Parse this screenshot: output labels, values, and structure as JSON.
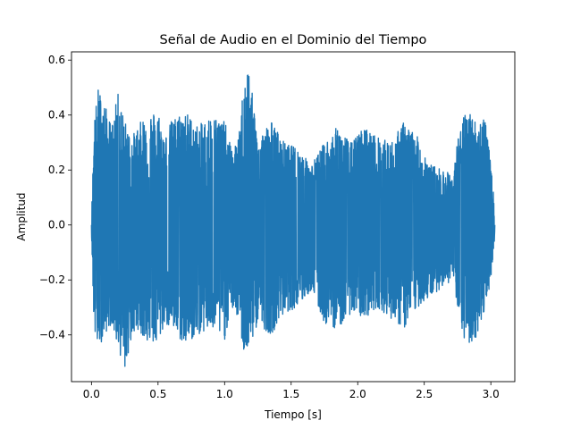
{
  "chart_data": {
    "type": "line",
    "title": "Señal de Audio en el Dominio del Tiempo",
    "xlabel": "Tiempo [s]",
    "ylabel": "Amplitud",
    "xlim": [
      -0.15,
      3.18
    ],
    "ylim": [
      -0.57,
      0.63
    ],
    "x_ticks": [
      0.0,
      0.5,
      1.0,
      1.5,
      2.0,
      2.5,
      3.0
    ],
    "x_tick_labels": [
      "0.0",
      "0.5",
      "1.0",
      "1.5",
      "2.0",
      "2.5",
      "3.0"
    ],
    "y_ticks": [
      -0.4,
      -0.2,
      0.0,
      0.2,
      0.4,
      0.6
    ],
    "y_tick_labels": [
      "−0.4",
      "−0.2",
      "0.0",
      "0.2",
      "0.4",
      "0.6"
    ],
    "grid": false,
    "color": "#1f77b4",
    "duration_s": 3.03,
    "envelope": {
      "t": [
        0.0,
        0.02,
        0.05,
        0.1,
        0.15,
        0.2,
        0.25,
        0.3,
        0.35,
        0.4,
        0.5,
        0.55,
        0.6,
        0.7,
        0.8,
        0.9,
        1.0,
        1.05,
        1.1,
        1.15,
        1.18,
        1.25,
        1.35,
        1.45,
        1.55,
        1.65,
        1.75,
        1.85,
        1.95,
        2.05,
        2.15,
        2.25,
        2.35,
        2.45,
        2.55,
        2.65,
        2.72,
        2.75,
        2.8,
        2.85,
        2.9,
        2.95,
        3.0,
        3.03
      ],
      "max": [
        0.02,
        0.38,
        0.5,
        0.44,
        0.36,
        0.48,
        0.38,
        0.32,
        0.36,
        0.4,
        0.42,
        0.32,
        0.38,
        0.42,
        0.36,
        0.4,
        0.38,
        0.28,
        0.3,
        0.55,
        0.58,
        0.32,
        0.38,
        0.3,
        0.28,
        0.22,
        0.3,
        0.36,
        0.3,
        0.36,
        0.32,
        0.3,
        0.38,
        0.32,
        0.22,
        0.2,
        0.18,
        0.32,
        0.4,
        0.42,
        0.36,
        0.42,
        0.22,
        0.06
      ],
      "min": [
        -0.02,
        -0.4,
        -0.45,
        -0.4,
        -0.36,
        -0.45,
        -0.53,
        -0.42,
        -0.38,
        -0.42,
        -0.44,
        -0.36,
        -0.38,
        -0.44,
        -0.4,
        -0.38,
        -0.42,
        -0.3,
        -0.34,
        -0.48,
        -0.46,
        -0.36,
        -0.4,
        -0.32,
        -0.3,
        -0.24,
        -0.36,
        -0.38,
        -0.32,
        -0.34,
        -0.3,
        -0.34,
        -0.38,
        -0.3,
        -0.26,
        -0.22,
        -0.2,
        -0.32,
        -0.42,
        -0.44,
        -0.4,
        -0.32,
        -0.2,
        -0.04
      ]
    }
  }
}
